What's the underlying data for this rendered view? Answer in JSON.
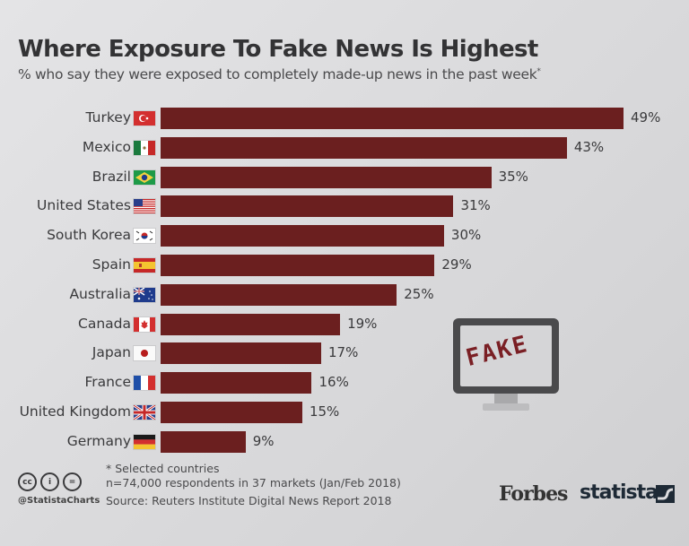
{
  "title": "Where Exposure To Fake News Is Highest",
  "subtitle": "% who say they were exposed to completely made-up news in the past week",
  "subtitle_mark": "*",
  "chart_data": {
    "type": "bar",
    "orientation": "horizontal",
    "title": "Where Exposure To Fake News Is Highest",
    "subtitle": "% who say they were exposed to completely made-up news in the past week*",
    "xlabel": "",
    "ylabel": "",
    "unit": "%",
    "grid": false,
    "legend": null,
    "bar_color": "#6b1f1f",
    "categories": [
      "Turkey",
      "Mexico",
      "Brazil",
      "United States",
      "South Korea",
      "Spain",
      "Australia",
      "Canada",
      "Japan",
      "France",
      "United Kingdom",
      "Germany"
    ],
    "values": [
      49,
      43,
      35,
      31,
      30,
      29,
      25,
      19,
      17,
      16,
      15,
      9
    ],
    "value_labels": [
      "49%",
      "43%",
      "35%",
      "31%",
      "30%",
      "29%",
      "25%",
      "19%",
      "17%",
      "16%",
      "15%",
      "9%"
    ],
    "xlim": [
      0,
      49
    ]
  },
  "rows": [
    {
      "label": "Turkey",
      "value_label": "49%",
      "flag": "turkey-flag-icon"
    },
    {
      "label": "Mexico",
      "value_label": "43%",
      "flag": "mexico-flag-icon"
    },
    {
      "label": "Brazil",
      "value_label": "35%",
      "flag": "brazil-flag-icon"
    },
    {
      "label": "United States",
      "value_label": "31%",
      "flag": "usa-flag-icon"
    },
    {
      "label": "South Korea",
      "value_label": "30%",
      "flag": "south-korea-flag-icon"
    },
    {
      "label": "Spain",
      "value_label": "29%",
      "flag": "spain-flag-icon"
    },
    {
      "label": "Australia",
      "value_label": "25%",
      "flag": "australia-flag-icon"
    },
    {
      "label": "Canada",
      "value_label": "19%",
      "flag": "canada-flag-icon"
    },
    {
      "label": "Japan",
      "value_label": "17%",
      "flag": "japan-flag-icon"
    },
    {
      "label": "France",
      "value_label": "16%",
      "flag": "france-flag-icon"
    },
    {
      "label": "United Kingdom",
      "value_label": "15%",
      "flag": "uk-flag-icon"
    },
    {
      "label": "Germany",
      "value_label": "9%",
      "flag": "germany-flag-icon"
    }
  ],
  "illustration": {
    "text": "FAKE",
    "icon": "monitor-icon"
  },
  "footer": {
    "note": "* Selected countries",
    "sample": "n=74,000 respondents in 37 markets (Jan/Feb 2018)",
    "source": "Source: Reuters Institute Digital News Report 2018",
    "handle": "@StatistaCharts",
    "cc_labels": [
      "cc",
      "i",
      "="
    ]
  },
  "brands": {
    "forbes": "Forbes",
    "statista": "statista"
  },
  "colors": {
    "bar": "#6b1f1f",
    "text": "#3a3a3c",
    "statista": "#1e2a36"
  }
}
